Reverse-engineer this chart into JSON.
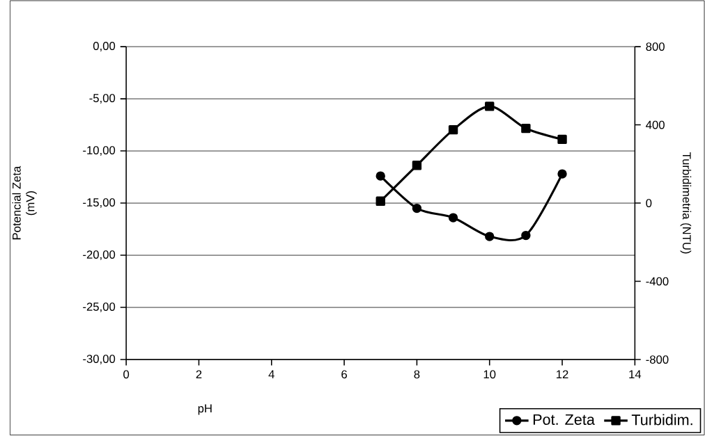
{
  "chart_data": {
    "type": "line",
    "xlabel": "pH",
    "ylabel": "Potencial Zeta (mV)",
    "y2label": "Turbidimetria (NTU)",
    "x": [
      7,
      8,
      9,
      10,
      11,
      12
    ],
    "series": [
      {
        "name": "Pot. Zeta",
        "color": "#000000",
        "marker": "circle",
        "values": [
          -12.4,
          -15.5,
          -16.4,
          -18.2,
          -18.1,
          -12.2
        ]
      },
      {
        "name": "Turbidim.",
        "color": "#000000",
        "marker": "square",
        "axis": "y2",
        "values": [
          10,
          193,
          375,
          495,
          382,
          326
        ]
      }
    ],
    "xlim": [
      0,
      14
    ],
    "xticks": [
      0,
      2,
      4,
      6,
      8,
      10,
      12,
      14
    ],
    "ylim": [
      -30,
      0
    ],
    "yticks": [
      {
        "value": 0,
        "label": "0,00"
      },
      {
        "value": -5,
        "label": "-5,00"
      },
      {
        "value": -10,
        "label": "-10,00"
      },
      {
        "value": -15,
        "label": "-15,00"
      },
      {
        "value": -20,
        "label": "-20,00"
      },
      {
        "value": -25,
        "label": "-25,00"
      },
      {
        "value": -30,
        "label": "-30,00"
      }
    ],
    "y2lim": [
      -800,
      800
    ],
    "y2ticks": [
      -800,
      -400,
      0,
      400,
      800
    ],
    "grid": "y",
    "legend": "bottom right",
    "line_style": "solid"
  }
}
